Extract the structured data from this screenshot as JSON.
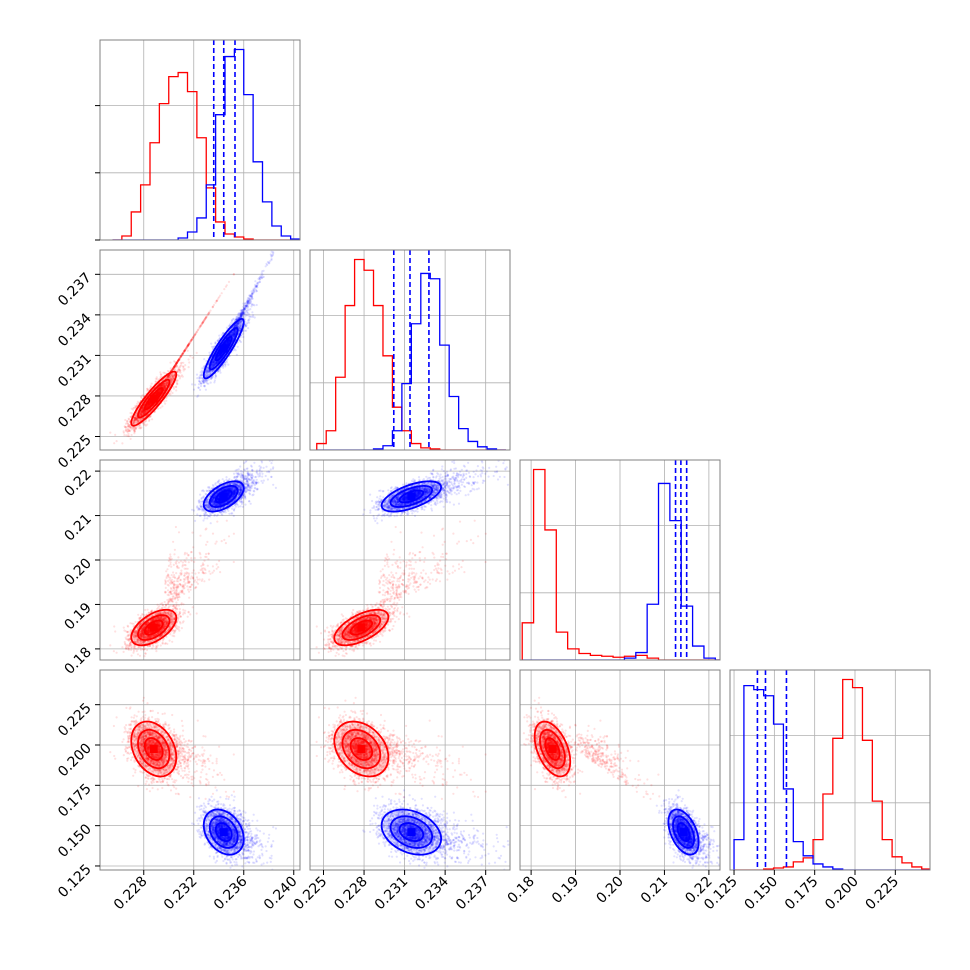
{
  "chart_data": {
    "type": "corner",
    "colors": {
      "red": "#ff0000",
      "blue": "#0000ff",
      "grid": "#b0b0b0"
    },
    "params": [
      {
        "range": [
          0.2245,
          0.2405
        ],
        "ticks": [
          0.228,
          0.232,
          0.236,
          0.24
        ],
        "tick_labels": [
          "0.228",
          "0.232",
          "0.236",
          "0.240"
        ]
      },
      {
        "range": [
          0.224,
          0.2388
        ],
        "ticks": [
          0.225,
          0.228,
          0.231,
          0.234,
          0.237
        ],
        "tick_labels": [
          "0.225",
          "0.228",
          "0.231",
          "0.234",
          "0.237"
        ]
      },
      {
        "range": [
          0.1775,
          0.2225
        ],
        "ticks": [
          0.18,
          0.19,
          0.2,
          0.21,
          0.22
        ],
        "tick_labels": [
          "0.18",
          "0.19",
          "0.20",
          "0.21",
          "0.22"
        ]
      },
      {
        "range": [
          0.1225,
          0.2465
        ],
        "ticks": [
          0.125,
          0.15,
          0.175,
          0.2,
          0.225
        ],
        "tick_labels": [
          "0.125",
          "0.150",
          "0.175",
          "0.200",
          "0.225"
        ]
      }
    ],
    "series": [
      {
        "color": "red",
        "mean": [
          0.2288,
          0.2278,
          0.1848,
          0.1975
        ],
        "sd": [
          0.0009,
          0.001,
          0.002,
          0.0085
        ],
        "tail": "high"
      },
      {
        "color": "blue",
        "mean": [
          0.2344,
          0.2315,
          0.2143,
          0.146
        ],
        "sd": [
          0.0008,
          0.0011,
          0.0017,
          0.007
        ],
        "tail": "low",
        "quantiles": [
          [
            0.2336,
            0.2344,
            0.2353
          ],
          [
            0.2302,
            0.2314,
            0.2328
          ],
          [
            0.2125,
            0.2137,
            0.215
          ],
          [
            0.1395,
            0.1445,
            0.1575
          ]
        ]
      }
    ],
    "histograms": [
      {
        "bins": [
          0.2255,
          0.2405
        ],
        "red": [
          0,
          4,
          28,
          55,
          97,
          136,
          163,
          167,
          148,
          102,
          52,
          18,
          6,
          3,
          1,
          0,
          0,
          0,
          0,
          0
        ],
        "blue": [
          0,
          0,
          0,
          0,
          0,
          0,
          0,
          2,
          8,
          22,
          55,
          125,
          183,
          190,
          145,
          78,
          38,
          14,
          4,
          1
        ]
      },
      {
        "bins": [
          0.2245,
          0.2385
        ],
        "red": [
          6,
          18,
          68,
          135,
          178,
          168,
          135,
          88,
          40,
          18,
          6,
          2,
          1,
          0,
          0,
          0,
          0,
          0,
          0,
          0
        ],
        "blue": [
          0,
          0,
          0,
          0,
          0,
          0,
          1,
          4,
          18,
          62,
          118,
          165,
          160,
          98,
          50,
          20,
          8,
          3,
          1,
          0
        ]
      },
      {
        "bins": [
          0.178,
          0.224
        ],
        "red": [
          40,
          205,
          140,
          30,
          12,
          7,
          5,
          4,
          3,
          4,
          5,
          2,
          0,
          0,
          0,
          0,
          0,
          0
        ],
        "blue": [
          0,
          0,
          0,
          0,
          0,
          0,
          0,
          0,
          0,
          2,
          8,
          60,
          190,
          150,
          58,
          15,
          2,
          0
        ]
      },
      {
        "bins": [
          0.125,
          0.2475
        ],
        "red": [
          0,
          0,
          0,
          1,
          2,
          3,
          8,
          12,
          30,
          75,
          130,
          188,
          180,
          128,
          68,
          30,
          13,
          7,
          3,
          1
        ],
        "blue": [
          30,
          182,
          178,
          172,
          144,
          80,
          28,
          14,
          6,
          3,
          1,
          0,
          0,
          0,
          0,
          0,
          0,
          0,
          0,
          0
        ]
      }
    ],
    "grid": true
  }
}
